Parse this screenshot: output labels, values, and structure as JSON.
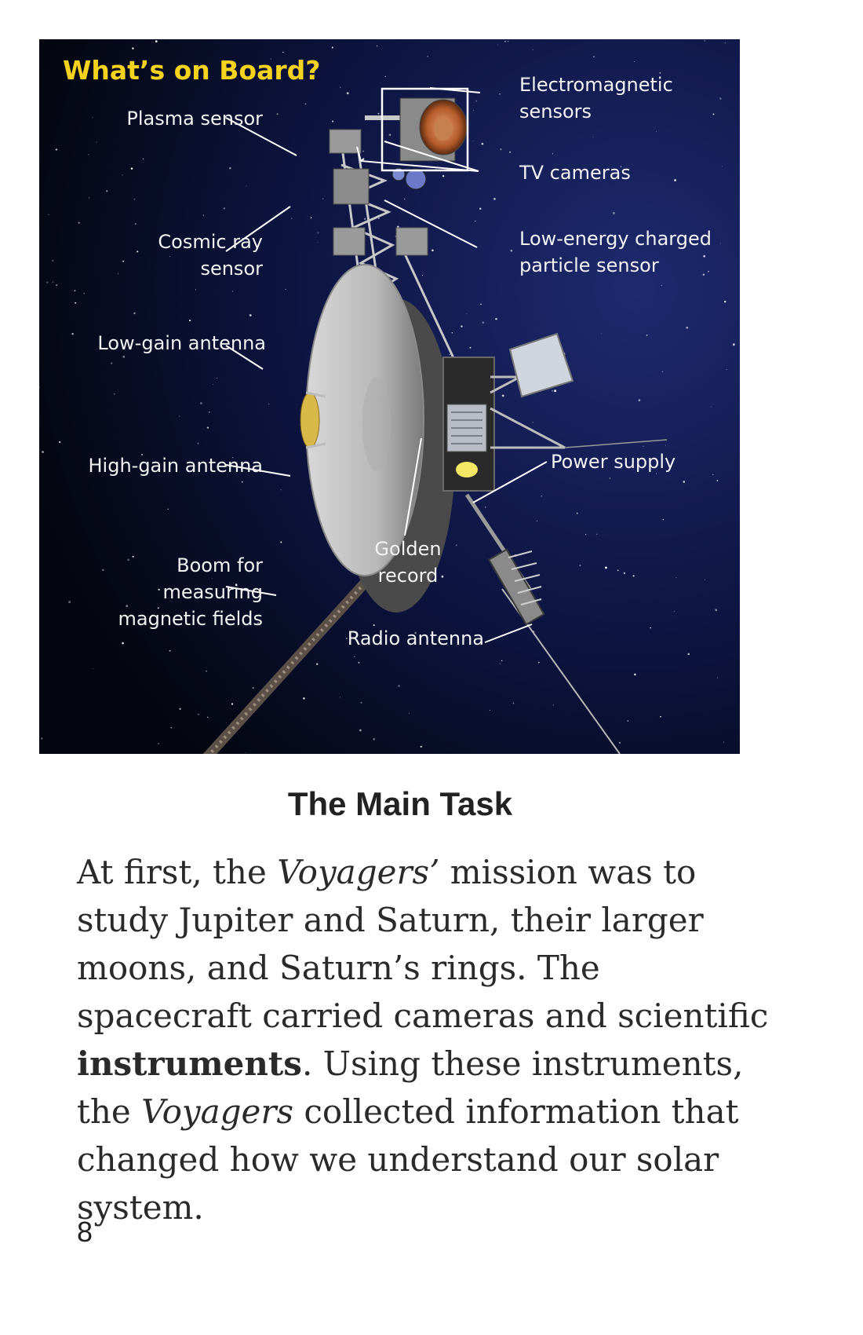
{
  "figure": {
    "title": "What’s on Board?",
    "labels": {
      "plasma_sensor": "Plasma sensor",
      "electromagnetic_sensors_1": "Electromagnetic",
      "electromagnetic_sensors_2": "sensors",
      "tv_cameras": "TV cameras",
      "cosmic_ray_1": "Cosmic ray",
      "cosmic_ray_2": "sensor",
      "low_energy_1": "Low-energy charged",
      "low_energy_2": "particle sensor",
      "low_gain_antenna": "Low-gain antenna",
      "high_gain_antenna": "High-gain antenna",
      "power_supply": "Power supply",
      "boom_1": "Boom for",
      "boom_2": "measuring",
      "boom_3": "magnetic fields",
      "golden_record_1": "Golden",
      "golden_record_2": "record",
      "radio_antenna": "Radio antenna"
    },
    "colors": {
      "background": "#0b1026",
      "title": "#f5d21c",
      "label": "#f2f2f2"
    }
  },
  "section": {
    "heading": "The Main Task",
    "paragraph": [
      {
        "text": "At first, the ",
        "style": "normal"
      },
      {
        "text": "Voyagers’",
        "style": "italic"
      },
      {
        "text": " mission was to study Jupiter and Saturn, their larger moons, and Saturn’s rings. The spacecraft carried cameras and scientific ",
        "style": "normal"
      },
      {
        "text": "instruments",
        "style": "bold"
      },
      {
        "text": ". Using these instruments, the ",
        "style": "normal"
      },
      {
        "text": "Voyagers",
        "style": "italic"
      },
      {
        "text": " collected information that changed how we understand our solar system.",
        "style": "normal"
      }
    ]
  },
  "page": {
    "number": "8"
  }
}
